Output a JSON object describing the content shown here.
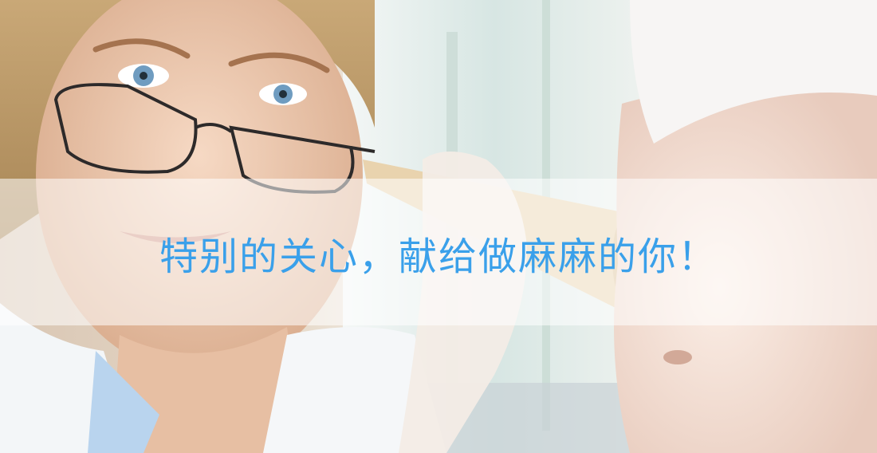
{
  "banner": {
    "headline": "特别的关心，献给做麻麻的你！",
    "headline_color": "#3aa0ea",
    "overlay_color": "#ffffff"
  },
  "photo": {
    "subjects": [
      "doctor-with-glasses",
      "fetal-stethoscope",
      "pregnant-belly"
    ]
  }
}
